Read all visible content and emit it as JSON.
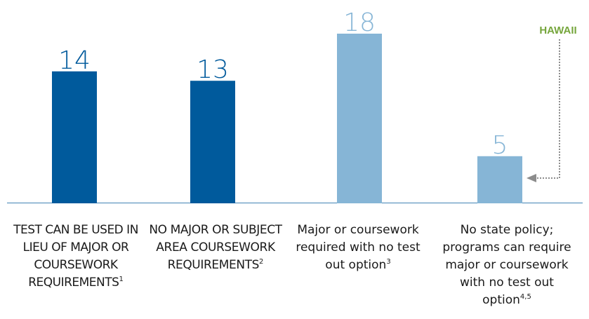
{
  "chart_data": {
    "type": "bar",
    "categories": [
      {
        "label": "TEST CAN BE USED IN LIEU OF MAJOR OR COURSEWORK REQUIREMENTS",
        "note": "1"
      },
      {
        "label": "NO MAJOR OR SUBJECT AREA COURSEWORK REQUIREMENTS",
        "note": "2"
      },
      {
        "label": "Major or coursework required with no test out option",
        "note": "3"
      },
      {
        "label": "No state policy; programs can require major or coursework with no test out option",
        "note": "4,5"
      }
    ],
    "values": [
      14,
      13,
      18,
      5
    ],
    "colors": [
      "#005a9c",
      "#005a9c",
      "#86b5d6",
      "#86b5d6"
    ],
    "ylim": [
      0,
      18
    ],
    "grid": false,
    "legend": "none",
    "annotation": {
      "text": "HAWAII",
      "color": "#76a63c",
      "target_bar": 3
    }
  }
}
